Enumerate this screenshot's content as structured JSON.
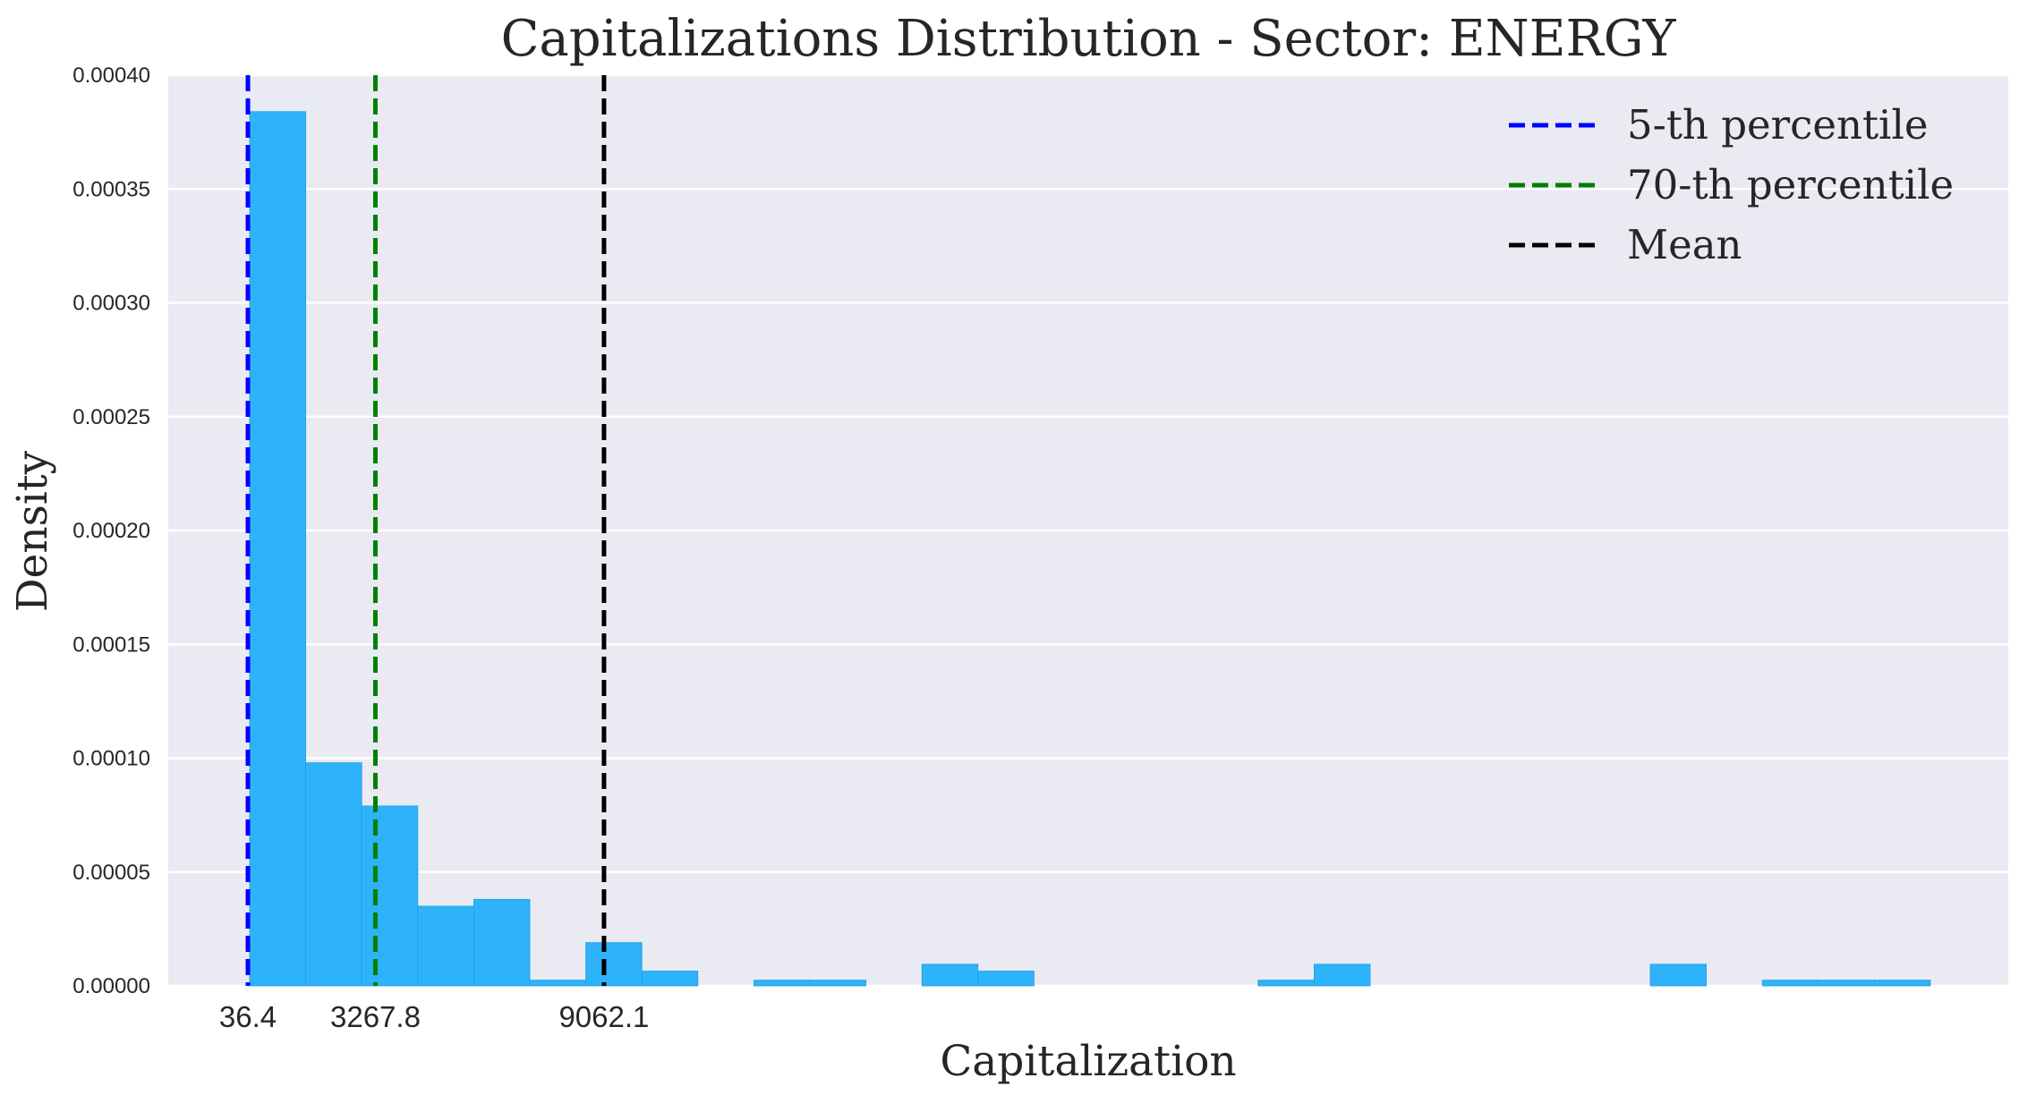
{
  "chart_data": {
    "type": "histogram",
    "title": "Capitalizations Distribution - Sector: ENERGY",
    "xlabel": "Capitalization",
    "ylabel": "Density",
    "ylim": [
      0,
      0.0004
    ],
    "yticks": [
      "0.00000",
      "0.00005",
      "0.00010",
      "0.00015",
      "0.00020",
      "0.00025",
      "0.00030",
      "0.00035",
      "0.00040"
    ],
    "ytick_values": [
      0,
      5e-05,
      0.0001,
      0.00015,
      0.0002,
      0.00025,
      0.0003,
      0.00035,
      0.0004
    ],
    "xlim": [
      -1500,
      30100
    ],
    "xticks": [
      {
        "value": 36.4,
        "label": "36.4"
      },
      {
        "value": 3267.8,
        "label": "3267.8"
      },
      {
        "value": 9062.1,
        "label": "9062.1"
      }
    ],
    "bin_width": 1420,
    "bins": [
      {
        "x0": 36,
        "density": 0.000384
      },
      {
        "x0": 1456,
        "density": 9.8e-05
      },
      {
        "x0": 2876,
        "density": 7.9e-05
      },
      {
        "x0": 4296,
        "density": 3.5e-05
      },
      {
        "x0": 5716,
        "density": 3.8e-05
      },
      {
        "x0": 7136,
        "density": 2.5e-06
      },
      {
        "x0": 8556,
        "density": 1.9e-05
      },
      {
        "x0": 9976,
        "density": 6.5e-06
      },
      {
        "x0": 11396,
        "density": 0
      },
      {
        "x0": 12816,
        "density": 2.5e-06
      },
      {
        "x0": 14236,
        "density": 2.5e-06
      },
      {
        "x0": 15656,
        "density": 0
      },
      {
        "x0": 17076,
        "density": 9.5e-06
      },
      {
        "x0": 18496,
        "density": 6.5e-06
      },
      {
        "x0": 19916,
        "density": 0
      },
      {
        "x0": 21336,
        "density": 0
      },
      {
        "x0": 22756,
        "density": 0
      },
      {
        "x0": 24176,
        "density": 0
      },
      {
        "x0": 25596,
        "density": 2.5e-06
      },
      {
        "x0": 27016,
        "density": 9.5e-06
      }
    ],
    "extra_bins": [
      {
        "x0": 35536,
        "density": 9.5e-06
      },
      {
        "x0": 38376,
        "density": 2.5e-06
      },
      {
        "x0": 39796,
        "density": 2.5e-06
      },
      {
        "x0": 41216,
        "density": 2.5e-06
      }
    ],
    "bar_color": "#2eb2fa",
    "background": "#eaeaf2",
    "grid": "horizontal",
    "legend_position": "top-right",
    "vlines": [
      {
        "name": "5-th percentile",
        "value": 36.4,
        "color": "#0000ff"
      },
      {
        "name": "70-th percentile",
        "value": 3267.8,
        "color": "#008000"
      },
      {
        "name": "Mean",
        "value": 9062.1,
        "color": "#000000"
      }
    ]
  }
}
